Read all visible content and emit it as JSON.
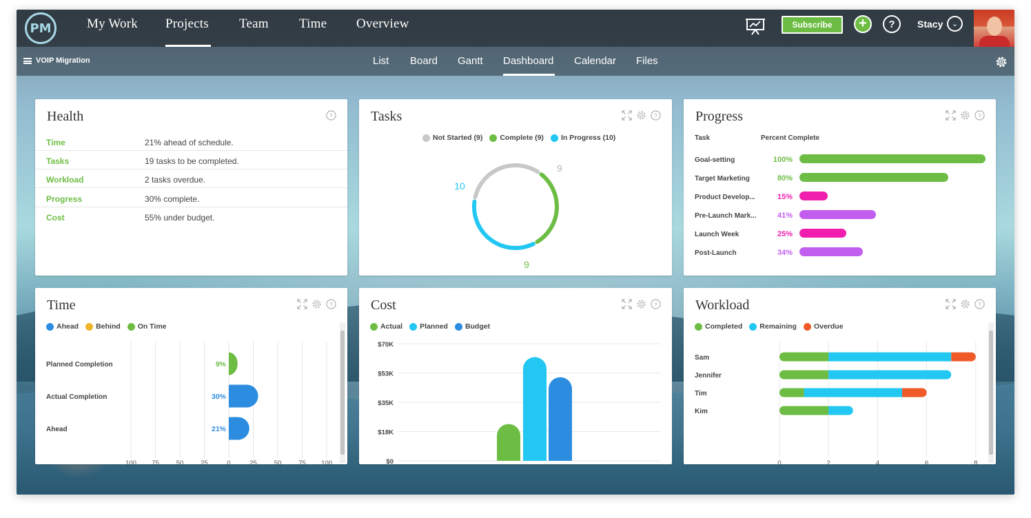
{
  "nav": {
    "logo": "PM",
    "items": [
      "My Work",
      "Projects",
      "Team",
      "Time",
      "Overview"
    ],
    "subscribe_label": "Subscribe",
    "user_name": "Stacy"
  },
  "subnav": {
    "project_name": "VOIP Migration",
    "tabs": [
      "List",
      "Board",
      "Gantt",
      "Dashboard",
      "Calendar",
      "Files"
    ],
    "active_tab": "Dashboard"
  },
  "colors": {
    "green": "#6dbd44",
    "cyan": "#22c7f2",
    "blue": "#2c8de0",
    "grey": "#c8c8c8",
    "magenta": "#f01fae",
    "purple": "#c15ef0",
    "orange": "#f05a28",
    "yellow": "#f0b429"
  },
  "health": {
    "title": "Health",
    "rows": [
      {
        "label": "Time",
        "value": "21% ahead of schedule."
      },
      {
        "label": "Tasks",
        "value": "19 tasks to be completed."
      },
      {
        "label": "Workload",
        "value": "2 tasks overdue."
      },
      {
        "label": "Progress",
        "value": "30% complete."
      },
      {
        "label": "Cost",
        "value": "55% under budget."
      }
    ]
  },
  "tasks": {
    "title": "Tasks",
    "legend": [
      "Not Started (9)",
      "Complete (9)",
      "In Progress (10)"
    ],
    "labels": {
      "not_started": "9",
      "in_progress": "10",
      "complete": "9"
    }
  },
  "progress": {
    "title": "Progress",
    "col_task": "Task",
    "col_percent": "Percent Complete",
    "rows": [
      {
        "name": "Goal-setting",
        "pct": "100%",
        "value": 100
      },
      {
        "name": "Target Marketing",
        "pct": "80%",
        "value": 80
      },
      {
        "name": "Product Develop...",
        "pct": "15%",
        "value": 15
      },
      {
        "name": "Pre-Launch Mark...",
        "pct": "41%",
        "value": 41
      },
      {
        "name": "Launch Week",
        "pct": "25%",
        "value": 25
      },
      {
        "name": "Post-Launch",
        "pct": "34%",
        "value": 34
      }
    ]
  },
  "time": {
    "title": "Time",
    "legend": [
      "Ahead",
      "Behind",
      "On Time"
    ],
    "rows": [
      "Planned Completion",
      "Actual Completion",
      "Ahead"
    ],
    "axis_ticks": [
      "100",
      "75",
      "50",
      "25",
      "0",
      "25",
      "50",
      "75",
      "100"
    ]
  },
  "cost": {
    "title": "Cost",
    "legend": [
      "Actual",
      "Planned",
      "Budget"
    ],
    "y_ticks": [
      "$70K",
      "$53K",
      "$35K",
      "$18K",
      "$0"
    ]
  },
  "workload": {
    "title": "Workload",
    "legend": [
      "Completed",
      "Remaining",
      "Overdue"
    ],
    "people": [
      "Sam",
      "Jennifer",
      "Tim",
      "Kim"
    ],
    "x_ticks": [
      "0",
      "2",
      "4",
      "6",
      "8"
    ]
  },
  "chart_data": [
    {
      "type": "pie",
      "title": "Tasks",
      "categories": [
        "Not Started",
        "Complete",
        "In Progress"
      ],
      "values": [
        9,
        9,
        10
      ]
    },
    {
      "type": "bar",
      "title": "Progress",
      "categories": [
        "Goal-setting",
        "Target Marketing",
        "Product Develop...",
        "Pre-Launch Mark...",
        "Launch Week",
        "Post-Launch"
      ],
      "values": [
        100,
        80,
        15,
        41,
        25,
        34
      ],
      "xlabel": "",
      "ylabel": "Percent Complete",
      "ylim": [
        0,
        100
      ]
    },
    {
      "type": "bar",
      "title": "Time",
      "categories": [
        "Planned Completion",
        "Actual Completion",
        "Ahead"
      ],
      "series": [
        {
          "name": "On Time",
          "values": [
            9,
            null,
            null
          ]
        },
        {
          "name": "Ahead",
          "values": [
            null,
            30,
            21
          ]
        }
      ],
      "xlim": [
        -100,
        100
      ]
    },
    {
      "type": "bar",
      "title": "Cost",
      "categories": [
        ""
      ],
      "series": [
        {
          "name": "Actual",
          "values": [
            22
          ]
        },
        {
          "name": "Planned",
          "values": [
            62
          ]
        },
        {
          "name": "Budget",
          "values": [
            50
          ]
        }
      ],
      "ylim": [
        0,
        70
      ],
      "y_ticks": [
        "$0",
        "$18K",
        "$35K",
        "$53K",
        "$70K"
      ]
    },
    {
      "type": "bar",
      "title": "Workload",
      "categories": [
        "Sam",
        "Jennifer",
        "Tim",
        "Kim"
      ],
      "series": [
        {
          "name": "Completed",
          "values": [
            2,
            2,
            1,
            2
          ]
        },
        {
          "name": "Remaining",
          "values": [
            5,
            5,
            4,
            1
          ]
        },
        {
          "name": "Overdue",
          "values": [
            1,
            0,
            1,
            0
          ]
        }
      ],
      "xlim": [
        0,
        8
      ]
    }
  ]
}
